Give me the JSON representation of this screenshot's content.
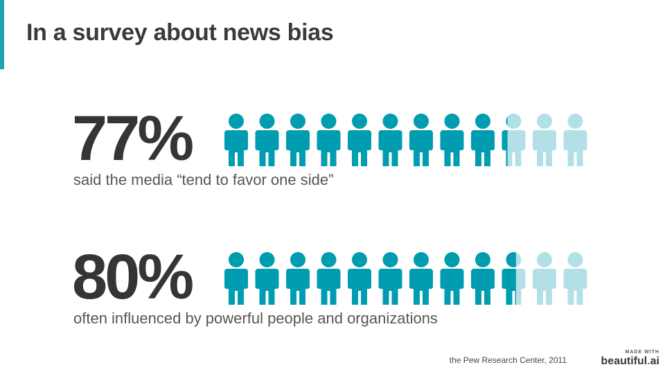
{
  "slide": {
    "title": "In a survey about news bias"
  },
  "stats": [
    {
      "value": "77%",
      "fraction": 0.77,
      "caption": "said the media “tend to favor one side”",
      "icons": 12
    },
    {
      "value": "80%",
      "fraction": 0.8,
      "caption": "often influenced by powerful people and organizations",
      "icons": 12
    }
  ],
  "source": "the Pew Research Center, 2011",
  "brand": {
    "small": "MADE WITH",
    "name": "beautiful",
    "dot": ".",
    "suffix": "ai"
  },
  "colors": {
    "accent": "#1ea3b5",
    "icon_filled": "#009db0",
    "icon_empty": "#b3e0e7",
    "text_dark": "#353535"
  },
  "icon_name": "person-icon"
}
